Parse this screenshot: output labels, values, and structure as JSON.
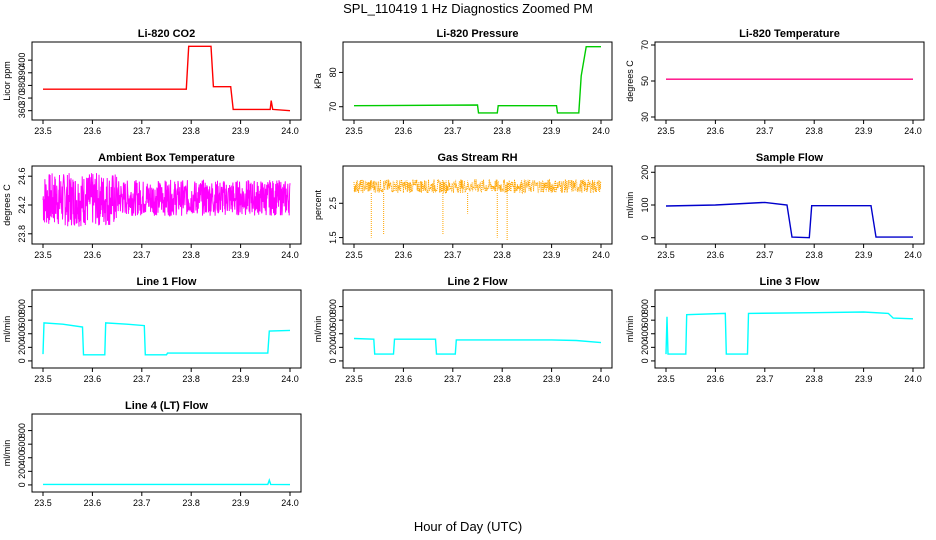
{
  "figure": {
    "title": "SPL_110419  1 Hz Diagnostics Zoomed PM",
    "xlabel": "Hour of Day (UTC)"
  },
  "chart_data": [
    {
      "type": "line",
      "title": "Li-820 CO2",
      "ylabel": "Licor ppm",
      "color": "#ff0000",
      "xlim": [
        23.5,
        24.0
      ],
      "ylim": [
        355,
        412
      ],
      "xticks": [
        "23.5",
        "23.6",
        "23.7",
        "23.8",
        "23.9",
        "24.0"
      ],
      "yticks": [
        "360",
        "370",
        "380",
        "390",
        "400"
      ],
      "x": [
        23.5,
        23.79,
        23.795,
        23.84,
        23.845,
        23.88,
        23.885,
        23.96,
        23.962,
        23.965,
        24.0
      ],
      "y": [
        377,
        377,
        411,
        411,
        379,
        379,
        361,
        361,
        368,
        361,
        360
      ]
    },
    {
      "type": "line",
      "title": "Li-820 Pressure",
      "ylabel": "kPa",
      "color": "#00cc00",
      "xlim": [
        23.5,
        24.0
      ],
      "ylim": [
        67,
        88
      ],
      "xticks": [
        "23.5",
        "23.6",
        "23.7",
        "23.8",
        "23.9",
        "24.0"
      ],
      "yticks": [
        "70",
        "80"
      ],
      "x": [
        23.5,
        23.75,
        23.752,
        23.79,
        23.792,
        23.91,
        23.912,
        23.955,
        23.96,
        23.97,
        24.0
      ],
      "y": [
        70.3,
        70.5,
        68.2,
        68.2,
        70.3,
        70.3,
        68.2,
        68.2,
        79,
        87.5,
        87.5
      ]
    },
    {
      "type": "line",
      "title": "Li-820 Temperature",
      "ylabel": "degrees C",
      "color": "#ff0080",
      "xlim": [
        23.5,
        24.0
      ],
      "ylim": [
        30,
        70
      ],
      "xticks": [
        "23.5",
        "23.6",
        "23.7",
        "23.8",
        "23.9",
        "24.0"
      ],
      "yticks": [
        "30",
        "50",
        "70"
      ],
      "x": [
        23.5,
        24.0
      ],
      "y": [
        51,
        51
      ]
    },
    {
      "type": "line",
      "title": "Ambient Box Temperature",
      "ylabel": "degrees C",
      "color": "#ff00ff",
      "xlim": [
        23.5,
        24.0
      ],
      "ylim": [
        23.7,
        24.7
      ],
      "xticks": [
        "23.5",
        "23.6",
        "23.7",
        "23.8",
        "23.9",
        "24.0"
      ],
      "yticks": [
        "23.8",
        "24.2",
        "24.6"
      ],
      "band": [
        24.05,
        24.55
      ],
      "x": [
        23.5,
        24.0
      ],
      "y": [
        24.3,
        24.3
      ]
    },
    {
      "type": "scatter",
      "title": "Gas Stream RH",
      "ylabel": "percent",
      "color": "#ffa500",
      "xlim": [
        23.5,
        24.0
      ],
      "ylim": [
        1.4,
        3.5
      ],
      "xticks": [
        "23.5",
        "23.6",
        "23.7",
        "23.8",
        "23.9",
        "24.0"
      ],
      "yticks": [
        "1.5",
        "2.5"
      ],
      "band": [
        2.8,
        3.2
      ],
      "dips": [
        [
          23.535,
          1.5
        ],
        [
          23.56,
          1.6
        ],
        [
          23.68,
          1.6
        ],
        [
          23.73,
          2.2
        ],
        [
          23.79,
          1.5
        ],
        [
          23.81,
          1.4
        ]
      ]
    },
    {
      "type": "line",
      "title": "Sample Flow",
      "ylabel": "ml/min",
      "color": "#0000cc",
      "xlim": [
        23.5,
        24.0
      ],
      "ylim": [
        -10,
        210
      ],
      "xticks": [
        "23.5",
        "23.6",
        "23.7",
        "23.8",
        "23.9",
        "24.0"
      ],
      "yticks": [
        "0",
        "100",
        "200"
      ],
      "x": [
        23.5,
        23.6,
        23.7,
        23.745,
        23.755,
        23.79,
        23.795,
        23.915,
        23.925,
        24.0
      ],
      "y": [
        97,
        100,
        108,
        100,
        2,
        0,
        98,
        98,
        2,
        2
      ]
    },
    {
      "type": "line",
      "title": "Line 1 Flow",
      "ylabel": "ml/min",
      "color": "#00ffff",
      "xlim": [
        23.5,
        24.0
      ],
      "ylim": [
        -60,
        1000
      ],
      "xticks": [
        "23.5",
        "23.6",
        "23.7",
        "23.8",
        "23.9",
        "24.0"
      ],
      "yticks": [
        "0",
        "200",
        "400",
        "600",
        "800"
      ],
      "x": [
        23.5,
        23.502,
        23.54,
        23.58,
        23.582,
        23.625,
        23.627,
        23.67,
        23.705,
        23.707,
        23.75,
        23.752,
        23.955,
        23.958,
        24.0
      ],
      "y": [
        100,
        560,
        540,
        500,
        90,
        90,
        560,
        540,
        520,
        90,
        90,
        115,
        115,
        440,
        450
      ]
    },
    {
      "type": "line",
      "title": "Line 2 Flow",
      "ylabel": "ml/min",
      "color": "#00ffff",
      "xlim": [
        23.5,
        24.0
      ],
      "ylim": [
        -60,
        1000
      ],
      "xticks": [
        "23.5",
        "23.6",
        "23.7",
        "23.8",
        "23.9",
        "24.0"
      ],
      "yticks": [
        "0",
        "200",
        "400",
        "600",
        "800"
      ],
      "x": [
        23.5,
        23.54,
        23.542,
        23.58,
        23.582,
        23.665,
        23.667,
        23.705,
        23.707,
        23.8,
        23.9,
        23.95,
        24.0
      ],
      "y": [
        330,
        320,
        100,
        100,
        320,
        320,
        100,
        100,
        310,
        310,
        310,
        300,
        270
      ]
    },
    {
      "type": "line",
      "title": "Line 3 Flow",
      "ylabel": "ml/min",
      "color": "#00ffff",
      "xlim": [
        23.5,
        24.0
      ],
      "ylim": [
        -60,
        1000
      ],
      "xticks": [
        "23.5",
        "23.6",
        "23.7",
        "23.8",
        "23.9",
        "24.0"
      ],
      "yticks": [
        "0",
        "200",
        "400",
        "600",
        "800"
      ],
      "x": [
        23.5,
        23.502,
        23.504,
        23.54,
        23.542,
        23.62,
        23.622,
        23.665,
        23.667,
        23.8,
        23.9,
        23.95,
        23.96,
        24.0
      ],
      "y": [
        100,
        650,
        100,
        100,
        680,
        700,
        100,
        100,
        700,
        710,
        720,
        700,
        630,
        620
      ]
    },
    {
      "type": "line",
      "title": "Line 4 (LT) Flow",
      "ylabel": "ml/min",
      "color": "#00ffff",
      "xlim": [
        23.5,
        24.0
      ],
      "ylim": [
        -60,
        1000
      ],
      "xticks": [
        "23.5",
        "23.6",
        "23.7",
        "23.8",
        "23.9",
        "24.0"
      ],
      "yticks": [
        "0",
        "200",
        "400",
        "600",
        "800"
      ],
      "x": [
        23.5,
        23.955,
        23.958,
        23.961,
        24.0
      ],
      "y": [
        8,
        8,
        70,
        8,
        5
      ]
    }
  ]
}
